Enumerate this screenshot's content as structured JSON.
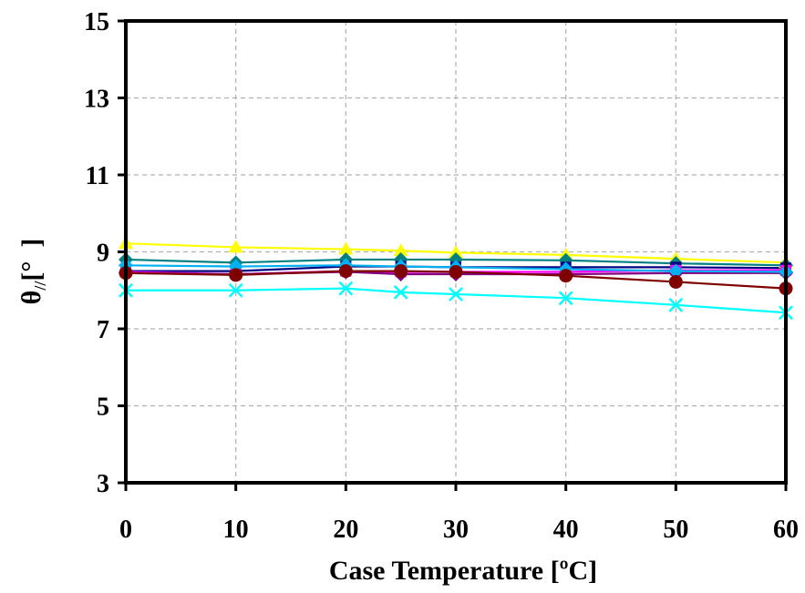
{
  "chart_data": {
    "type": "line",
    "title": "",
    "xlabel": "Case Temperature [ºC]",
    "ylabel_main": "θ",
    "ylabel_sub": "//",
    "ylabel_unit": "[°  ]",
    "x": [
      0,
      10,
      20,
      25,
      30,
      40,
      50,
      60
    ],
    "xlim": [
      0,
      60
    ],
    "ylim": [
      3,
      15
    ],
    "xticks": [
      "0",
      "10",
      "20",
      "30",
      "40",
      "50",
      "60"
    ],
    "yticks": [
      "3",
      "5",
      "7",
      "9",
      "11",
      "13",
      "15"
    ],
    "grid": true,
    "legend": "none",
    "series": [
      {
        "color": "#ffff00",
        "marker": "triangle",
        "values": [
          9.22,
          9.12,
          9.07,
          9.03,
          8.98,
          8.92,
          8.82,
          8.72
        ]
      },
      {
        "color": "#008080",
        "marker": "diamond",
        "values": [
          8.8,
          8.72,
          8.8,
          8.8,
          8.8,
          8.78,
          8.7,
          8.65
        ]
      },
      {
        "color": "#000080",
        "marker": "square",
        "values": [
          8.5,
          8.5,
          8.62,
          8.62,
          8.6,
          8.6,
          8.6,
          8.58
        ]
      },
      {
        "color": "#ff00ff",
        "marker": "square",
        "values": [
          8.48,
          8.42,
          8.5,
          8.48,
          8.48,
          8.48,
          8.52,
          8.52
        ]
      },
      {
        "color": "#800080",
        "marker": "diamond",
        "values": [
          8.45,
          8.42,
          8.48,
          8.42,
          8.42,
          8.42,
          8.45,
          8.45
        ]
      },
      {
        "color": "#00b0f0",
        "marker": "diamond",
        "values": [
          8.65,
          8.62,
          8.65,
          8.62,
          8.6,
          8.55,
          8.5,
          8.48
        ]
      },
      {
        "color": "#7f0000",
        "marker": "circle",
        "values": [
          8.45,
          8.4,
          8.5,
          8.5,
          8.48,
          8.38,
          8.22,
          8.05
        ]
      },
      {
        "color": "#00ffff",
        "marker": "x",
        "values": [
          8.0,
          8.0,
          8.05,
          7.95,
          7.9,
          7.8,
          7.62,
          7.42
        ]
      }
    ]
  }
}
